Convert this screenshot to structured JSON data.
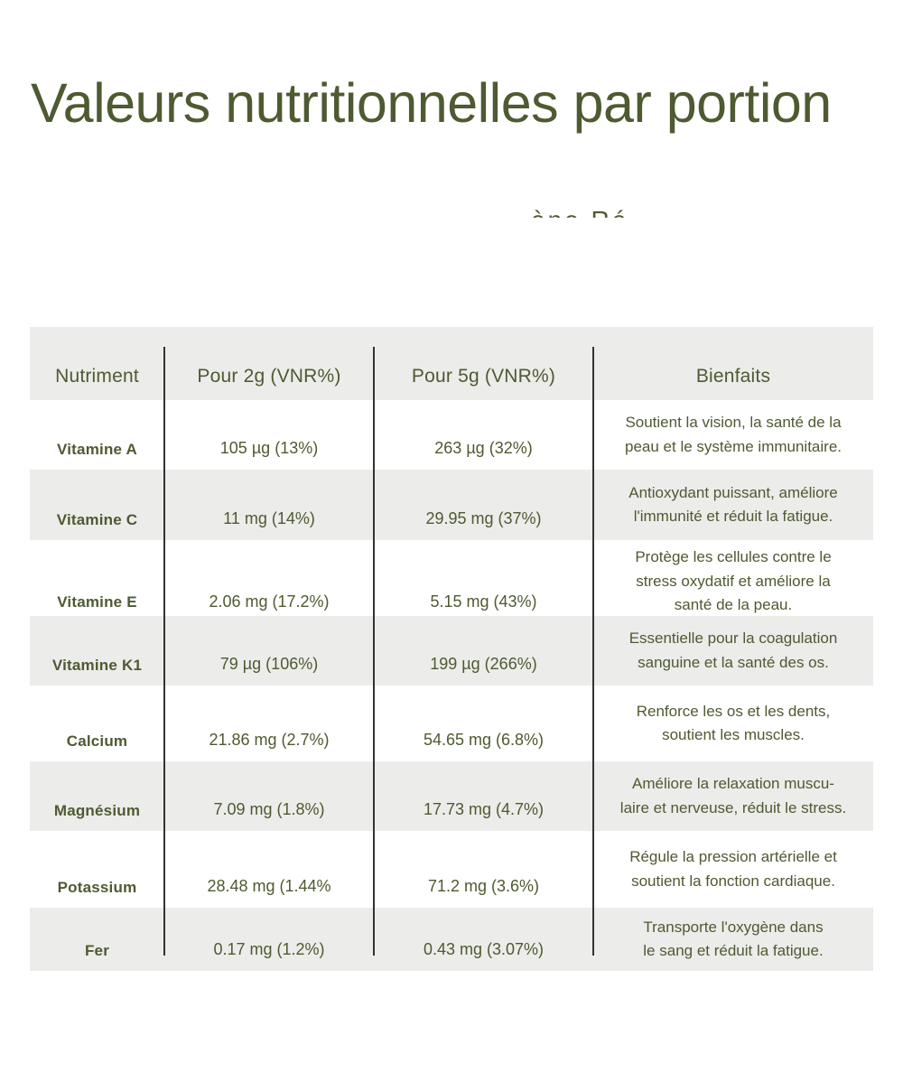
{
  "page": {
    "title": "Valeurs nutritionnelles par portion",
    "clipped_fragment": "ène Ré"
  },
  "colors": {
    "accent_text": "#4E5A31",
    "row_alt_bg": "#ECECEA",
    "divider_line": "#333333",
    "page_bg": "#FFFFFF"
  },
  "table": {
    "columns": [
      "Nutriment",
      "Pour 2g (VNR%)",
      "Pour 5g (VNR%)",
      "Bienfaits"
    ],
    "rows": [
      {
        "nutrient": "Vitamine A",
        "per2g": "105 µg (13%)",
        "per5g": "263 µg (32%)",
        "benefit": "Soutient la vision, la santé de la\npeau et le système immunitaire."
      },
      {
        "nutrient": "Vitamine C",
        "per2g": "11 mg (14%)",
        "per5g": "29.95 mg (37%)",
        "benefit": "Antioxydant puissant, améliore\nl'immunité et réduit la fatigue."
      },
      {
        "nutrient": "Vitamine E",
        "per2g": "2.06 mg (17.2%)",
        "per5g": "5.15 mg (43%)",
        "benefit": "Protège les cellules contre le\nstress oxydatif et améliore la\nsanté de la peau."
      },
      {
        "nutrient": "Vitamine K1",
        "per2g": "79 µg (106%)",
        "per5g": "199 µg (266%)",
        "benefit": "Essentielle pour la coagulation\nsanguine et la santé des os."
      },
      {
        "nutrient": "Calcium",
        "per2g": "21.86 mg (2.7%)",
        "per5g": "54.65 mg (6.8%)",
        "benefit": "Renforce les os et les dents,\nsoutient les muscles."
      },
      {
        "nutrient": "Magnésium",
        "per2g": "7.09 mg (1.8%)",
        "per5g": "17.73 mg (4.7%)",
        "benefit": "Améliore la relaxation muscu-\nlaire et nerveuse, réduit le stress."
      },
      {
        "nutrient": "Potassium",
        "per2g": "28.48 mg (1.44%",
        "per5g": "71.2 mg (3.6%)",
        "benefit": "Régule la pression artérielle et\nsoutient la fonction cardiaque."
      },
      {
        "nutrient": "Fer",
        "per2g": "0.17 mg (1.2%)",
        "per5g": "0.43 mg (3.07%)",
        "benefit": "Transporte l'oxygène dans\nle sang et réduit la fatigue."
      }
    ]
  }
}
